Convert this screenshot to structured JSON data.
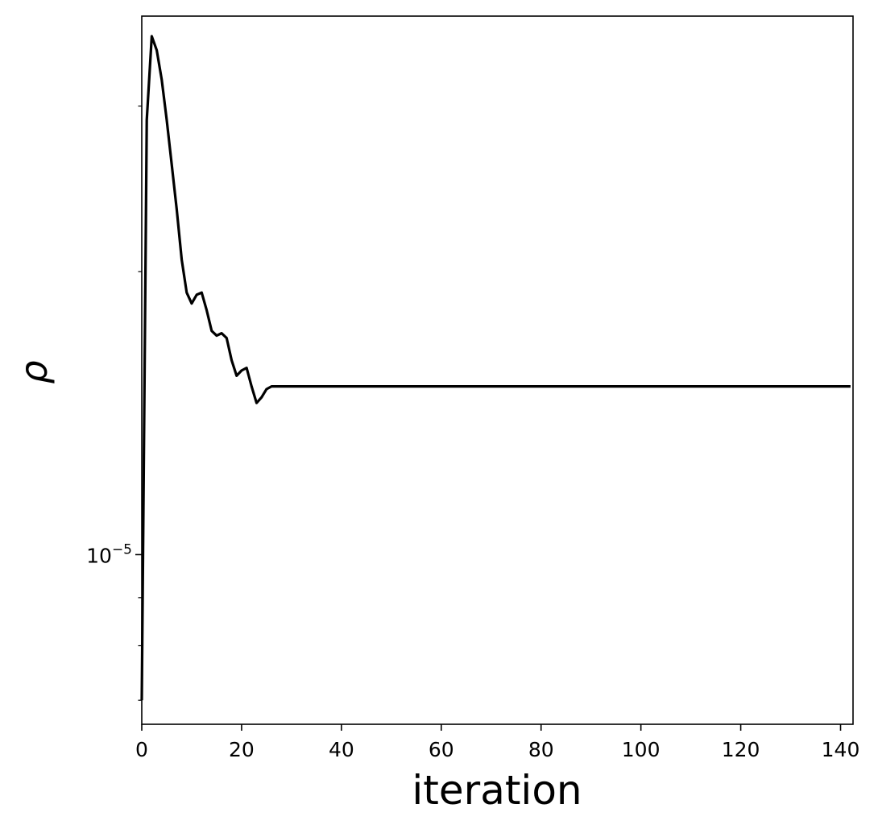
{
  "chart_data": {
    "type": "line",
    "xlabel": "iteration",
    "ylabel": "ρ",
    "xlim": [
      0,
      142.5
    ],
    "ylim": [
      6.6e-06,
      3.74e-05
    ],
    "yscale": "log",
    "grid": false,
    "legend": "none",
    "x_ticks": [
      0,
      20,
      40,
      60,
      80,
      100,
      120,
      140
    ],
    "x_tick_labels": [
      "0",
      "20",
      "40",
      "60",
      "80",
      "100",
      "120",
      "140"
    ],
    "y_major_ticks": [
      {
        "value": 1e-05,
        "base": "10",
        "exp": "−5"
      }
    ],
    "y_minor_ticks": [
      7e-06,
      8e-06,
      9e-06,
      2e-05,
      3e-05
    ],
    "series": [
      {
        "color": "#000000",
        "x": [
          0,
          1,
          2,
          3,
          4,
          5,
          6,
          7,
          8,
          9,
          10,
          11,
          12,
          13,
          14,
          15,
          16,
          17,
          18,
          19,
          20,
          21,
          22,
          23,
          24,
          25,
          26,
          30,
          40,
          60,
          80,
          100,
          120,
          142
        ],
        "y": [
          7e-06,
          2.9e-05,
          3.56e-05,
          3.44e-05,
          3.2e-05,
          2.9e-05,
          2.6e-05,
          2.33e-05,
          2.06e-05,
          1.9e-05,
          1.85e-05,
          1.89e-05,
          1.9e-05,
          1.82e-05,
          1.73e-05,
          1.71e-05,
          1.72e-05,
          1.7e-05,
          1.61e-05,
          1.55e-05,
          1.57e-05,
          1.58e-05,
          1.51e-05,
          1.45e-05,
          1.47e-05,
          1.5e-05,
          1.51e-05,
          1.51e-05,
          1.51e-05,
          1.51e-05,
          1.51e-05,
          1.51e-05,
          1.51e-05,
          1.51e-05
        ]
      }
    ]
  }
}
